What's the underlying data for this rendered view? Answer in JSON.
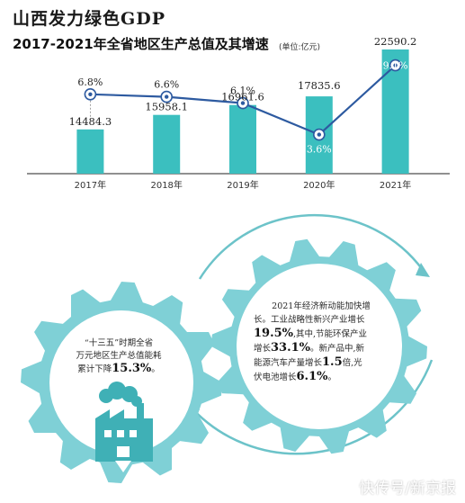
{
  "header": {
    "title": "山西发力绿色GDP",
    "subtitle": "2017-2021年全省地区生产总值及其增速",
    "unit": "(单位:亿元)"
  },
  "chart_data": {
    "type": "bar",
    "categories": [
      "2017年",
      "2018年",
      "2019年",
      "2020年",
      "2021年"
    ],
    "series": [
      {
        "values": [
          14484.3,
          15958.1,
          16961.6,
          17835.6,
          22590.2
        ]
      },
      {
        "values": [
          6.8,
          6.6,
          6.1,
          3.6,
          9.1
        ]
      }
    ],
    "value_labels": [
      "14484.3",
      "15958.1",
      "16961.6",
      "17835.6",
      "22590.2"
    ],
    "rate_labels": [
      "6.8%",
      "6.6%",
      "6.1%",
      "3.6%",
      "9.1%"
    ],
    "bar_ylim": [
      10000,
      23500
    ],
    "rate_ylim": [
      0,
      10
    ],
    "colors": {
      "bar": "#3bbfbf",
      "line": "#2d5aa0",
      "marker_fill": "#ffffff"
    },
    "grid": false,
    "legend": "none"
  },
  "infographic": {
    "left_gear": {
      "line1": "“十三五”时期全省",
      "line2": "万元地区生产总值能耗",
      "line3_prefix": "累计下降",
      "highlight": "15.3%",
      "line3_suffix": "。"
    },
    "right_gear": {
      "p1": "2021年经济新动能加快增",
      "p2": "长。工业战略性新兴产业增长",
      "h1": "19.5%",
      "p3": ",其中,节能环保产业",
      "p4": "增长",
      "h2": "33.1%",
      "p5": "。新产品中,新",
      "p6": "能源汽车产量增长",
      "h3": "1.5",
      "p7": "倍,光",
      "p8": "伏电池增长",
      "h4": "6.1%",
      "p9": "。"
    },
    "colors": {
      "gear_fill": "#7fd0d6",
      "gear_light": "#cfecef",
      "gear_dark": "#3fb0b6",
      "arrow": "#6cc3c9"
    }
  },
  "watermark": "快传号/新京报"
}
